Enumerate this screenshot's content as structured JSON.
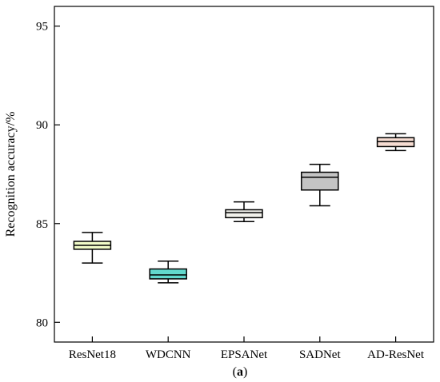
{
  "chart_data": {
    "type": "box",
    "categories": [
      "ResNet18",
      "WDCNN",
      "EPSANet",
      "SADNet",
      "AD-ResNet"
    ],
    "ylabel": "Recognition accuracy/%",
    "ylim": [
      79.0,
      96.0
    ],
    "yticks": [
      80,
      85,
      90,
      95
    ],
    "grid": false,
    "legend": "none",
    "boxes": [
      {
        "name": "ResNet18",
        "min": 83.0,
        "q1": 83.7,
        "median": 83.9,
        "q3": 84.1,
        "max": 84.55,
        "color": "#f0fbc8"
      },
      {
        "name": "WDCNN",
        "min": 82.0,
        "q1": 82.2,
        "median": 82.4,
        "q3": 82.7,
        "max": 83.1,
        "color": "#62d8cc"
      },
      {
        "name": "EPSANet",
        "min": 85.1,
        "q1": 85.3,
        "median": 85.55,
        "q3": 85.7,
        "max": 86.1,
        "color": "#f2f2ec"
      },
      {
        "name": "SADNet",
        "min": 85.9,
        "q1": 86.7,
        "median": 87.35,
        "q3": 87.6,
        "max": 88.0,
        "color": "#c4c4c4"
      },
      {
        "name": "AD-ResNet",
        "min": 88.7,
        "q1": 88.9,
        "median": 89.15,
        "q3": 89.35,
        "max": 89.55,
        "color": "#f6dcd2"
      }
    ]
  },
  "caption": {
    "open": "(",
    "letter": "a",
    "close": ")"
  }
}
